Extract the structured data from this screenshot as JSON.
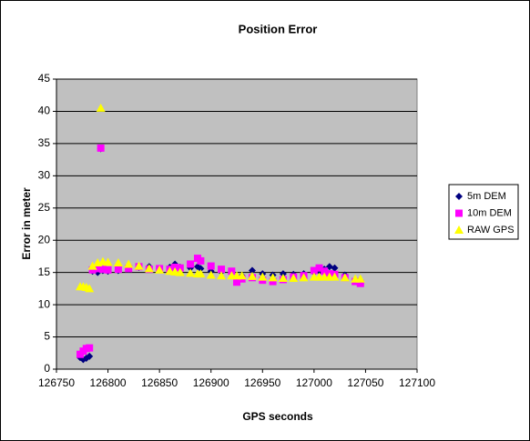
{
  "chart_data": {
    "type": "scatter",
    "title": "Position Error",
    "xlabel": "GPS seconds",
    "ylabel": "Error in meter",
    "x": [
      126773,
      126776,
      126779,
      126782,
      126785,
      126790,
      126793,
      126795,
      126800,
      126810,
      126820,
      126830,
      126840,
      126850,
      126860,
      126865,
      126870,
      126880,
      126887,
      126890,
      126900,
      126910,
      126920,
      126925,
      126930,
      126940,
      126950,
      126960,
      126970,
      126980,
      126990,
      127000,
      127005,
      127010,
      127015,
      127020,
      127030,
      127040,
      127045
    ],
    "series": [
      {
        "name": "5m DEM",
        "color": "#000080",
        "marker": "diamond",
        "values": [
          1.8,
          1.5,
          1.7,
          2.0,
          15.2,
          15.0,
          34.2,
          15.3,
          15.2,
          15.3,
          15.5,
          15.8,
          15.9,
          15.6,
          15.8,
          16.3,
          15.8,
          15.7,
          15.9,
          15.6,
          15.2,
          15.1,
          15.0,
          14.3,
          14.5,
          15.3,
          14.8,
          14.6,
          14.8,
          14.7,
          14.8,
          15.0,
          15.2,
          15.5,
          15.9,
          15.7,
          14.6,
          13.8,
          13.4
        ]
      },
      {
        "name": "10m DEM",
        "color": "#ff00ff",
        "marker": "square",
        "values": [
          2.3,
          2.8,
          3.2,
          3.3,
          15.4,
          15.6,
          34.3,
          15.5,
          15.4,
          15.5,
          15.6,
          15.9,
          15.5,
          15.6,
          15.5,
          15.8,
          15.7,
          16.3,
          17.2,
          16.8,
          16.0,
          15.5,
          15.2,
          13.5,
          14.0,
          14.2,
          13.8,
          13.6,
          13.9,
          14.3,
          14.5,
          15.3,
          15.7,
          15.2,
          14.8,
          14.7,
          14.2,
          13.6,
          13.3
        ]
      },
      {
        "name": "RAW GPS",
        "color": "#ffff00",
        "marker": "triangle",
        "values": [
          12.8,
          12.8,
          12.7,
          12.5,
          16.0,
          16.5,
          40.5,
          16.7,
          16.6,
          16.5,
          16.3,
          16.0,
          15.6,
          15.4,
          15.2,
          15.1,
          15.0,
          14.9,
          14.8,
          14.8,
          14.6,
          14.5,
          14.5,
          14.5,
          14.5,
          14.4,
          14.3,
          14.2,
          14.1,
          14.1,
          14.2,
          14.3,
          14.3,
          14.3,
          14.3,
          14.3,
          14.2,
          14.0,
          14.0
        ]
      }
    ],
    "xlim": [
      126750,
      127100
    ],
    "xticks": [
      126750,
      126800,
      126850,
      126900,
      126950,
      127000,
      127050,
      127100
    ],
    "ylim": [
      0,
      45
    ],
    "yticks": [
      0,
      5,
      10,
      15,
      20,
      25,
      30,
      35,
      40,
      45
    ],
    "grid": true,
    "legend": "right"
  }
}
